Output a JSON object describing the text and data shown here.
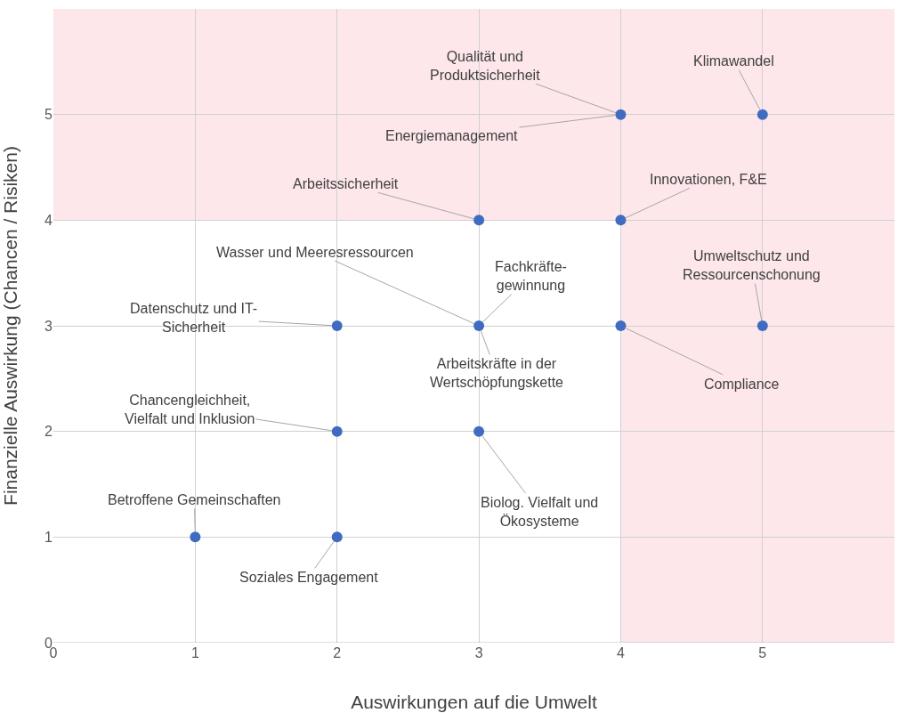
{
  "chart_data": {
    "type": "scatter",
    "xlabel": "Auswirkungen auf die Umwelt",
    "ylabel": "Finanzielle Auswirkung (Chancen / Risiken)",
    "x": [
      1,
      2,
      2,
      2,
      3,
      3,
      3,
      4,
      4,
      4,
      5,
      5
    ],
    "series": [
      {
        "color": "#3f6cc0",
        "values": [
          1,
          1,
          2,
          3,
          2,
          3,
          4,
          3,
          4,
          5,
          5,
          3
        ]
      }
    ],
    "xlim": [
      0,
      5.93
    ],
    "ylim": [
      0,
      6
    ],
    "xticks": [
      0,
      1,
      2,
      3,
      4,
      5
    ],
    "yticks": [
      0,
      1,
      2,
      3,
      4,
      5
    ],
    "grid": true,
    "marker": "circle",
    "bands": [
      {
        "axis": "y",
        "from": 4,
        "to": 6,
        "color": "#fde7ea"
      },
      {
        "axis": "x",
        "from": 4,
        "to": 5.93,
        "color": "#fde7ea"
      }
    ],
    "annotations": [
      {
        "text": "Qualität und\nProduktsicherheit",
        "x": 4,
        "y": 5
      },
      {
        "text": "Klimawandel",
        "x": 5,
        "y": 5
      },
      {
        "text": "Energiemanagement",
        "x": 4,
        "y": 5
      },
      {
        "text": "Arbeitssicherheit",
        "x": 3,
        "y": 4
      },
      {
        "text": "Innovationen, F&E",
        "x": 4,
        "y": 4
      },
      {
        "text": "Wasser und Meeresressourcen",
        "x": 3,
        "y": 3
      },
      {
        "text": "Fachkräfte-\ngewinnung",
        "x": 3,
        "y": 3
      },
      {
        "text": "Umweltschutz und\nRessourcenschonung",
        "x": 5,
        "y": 3
      },
      {
        "text": "Datenschutz und IT-\nSicherheit",
        "x": 2,
        "y": 3
      },
      {
        "text": "Arbeitskräfte in der\nWertschöpfungskette",
        "x": 3,
        "y": 3
      },
      {
        "text": "Compliance",
        "x": 4,
        "y": 3
      },
      {
        "text": "Chancengleichheit,\nVielfalt und Inklusion",
        "x": 2,
        "y": 2
      },
      {
        "text": "Biolog. Vielfalt und\nÖkosysteme",
        "x": 3,
        "y": 2
      },
      {
        "text": "Betroffene Gemeinschaften",
        "x": 1,
        "y": 1
      },
      {
        "text": "Soziales Engagement",
        "x": 2,
        "y": 1
      }
    ]
  }
}
